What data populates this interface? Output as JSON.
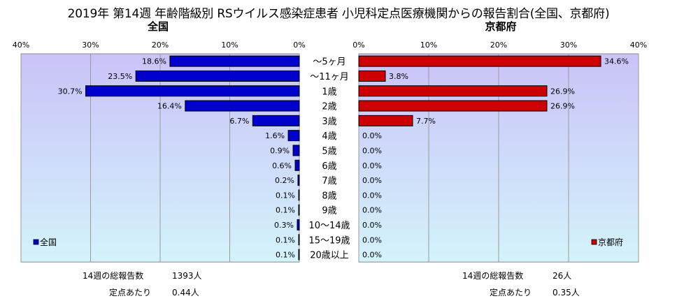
{
  "title": "2019年 第14週 年齢階級別 RSウイルス感染症患者 小児科定点医療機関からの報告割合(全国、京都府)",
  "colors": {
    "national": "#0000cc",
    "kyoto": "#cc0000",
    "plot_bg_top": "#c9c3f8",
    "plot_bg_bottom": "#d4f3fb"
  },
  "chart_data": [
    {
      "type": "bar",
      "orientation": "horizontal",
      "direction": "right-to-left",
      "title": "全国",
      "legend": "全国",
      "legend_position": "bottom-left",
      "xlim": [
        0,
        40
      ],
      "ticks": [
        "0%",
        "10%",
        "20%",
        "30%",
        "40%"
      ],
      "categories": [
        "～5ヶ月",
        "～11ヶ月",
        "1歳",
        "2歳",
        "3歳",
        "4歳",
        "5歳",
        "6歳",
        "7歳",
        "8歳",
        "9歳",
        "10～14歳",
        "15～19歳",
        "20歳以上"
      ],
      "values": [
        18.6,
        23.5,
        30.7,
        16.4,
        6.7,
        1.6,
        0.9,
        0.6,
        0.2,
        0.1,
        0.1,
        0.3,
        0.1,
        0.1
      ],
      "labels": [
        "18.6%",
        "23.5%",
        "30.7%",
        "16.4%",
        "6.7%",
        "1.6%",
        "0.9%",
        "0.6%",
        "0.2%",
        "0.1%",
        "0.1%",
        "0.3%",
        "0.1%",
        "0.1%"
      ],
      "grid": true
    },
    {
      "type": "bar",
      "orientation": "horizontal",
      "direction": "left-to-right",
      "title": "京都府",
      "legend": "京都府",
      "legend_position": "bottom-right",
      "xlim": [
        0,
        40
      ],
      "ticks": [
        "0%",
        "10%",
        "20%",
        "30%",
        "40%"
      ],
      "categories": [
        "～5ヶ月",
        "～11ヶ月",
        "1歳",
        "2歳",
        "3歳",
        "4歳",
        "5歳",
        "6歳",
        "7歳",
        "8歳",
        "9歳",
        "10～14歳",
        "15～19歳",
        "20歳以上"
      ],
      "values": [
        34.6,
        3.8,
        26.9,
        26.9,
        7.7,
        0.0,
        0.0,
        0.0,
        0.0,
        0.0,
        0.0,
        0.0,
        0.0,
        0.0
      ],
      "labels": [
        "34.6%",
        "3.8%",
        "26.9%",
        "26.9%",
        "7.7%",
        "0.0%",
        "0.0%",
        "0.0%",
        "0.0%",
        "0.0%",
        "0.0%",
        "0.0%",
        "0.0%",
        "0.0%"
      ],
      "grid": true
    }
  ],
  "footer": {
    "national": {
      "total_label": "14週の総報告数",
      "total_value": "1393人",
      "per_site_label": "定点あたり",
      "per_site_value": "0.44人"
    },
    "kyoto": {
      "total_label": "14週の総報告数",
      "total_value": "26人",
      "per_site_label": "定点あたり",
      "per_site_value": "0.35人"
    }
  }
}
